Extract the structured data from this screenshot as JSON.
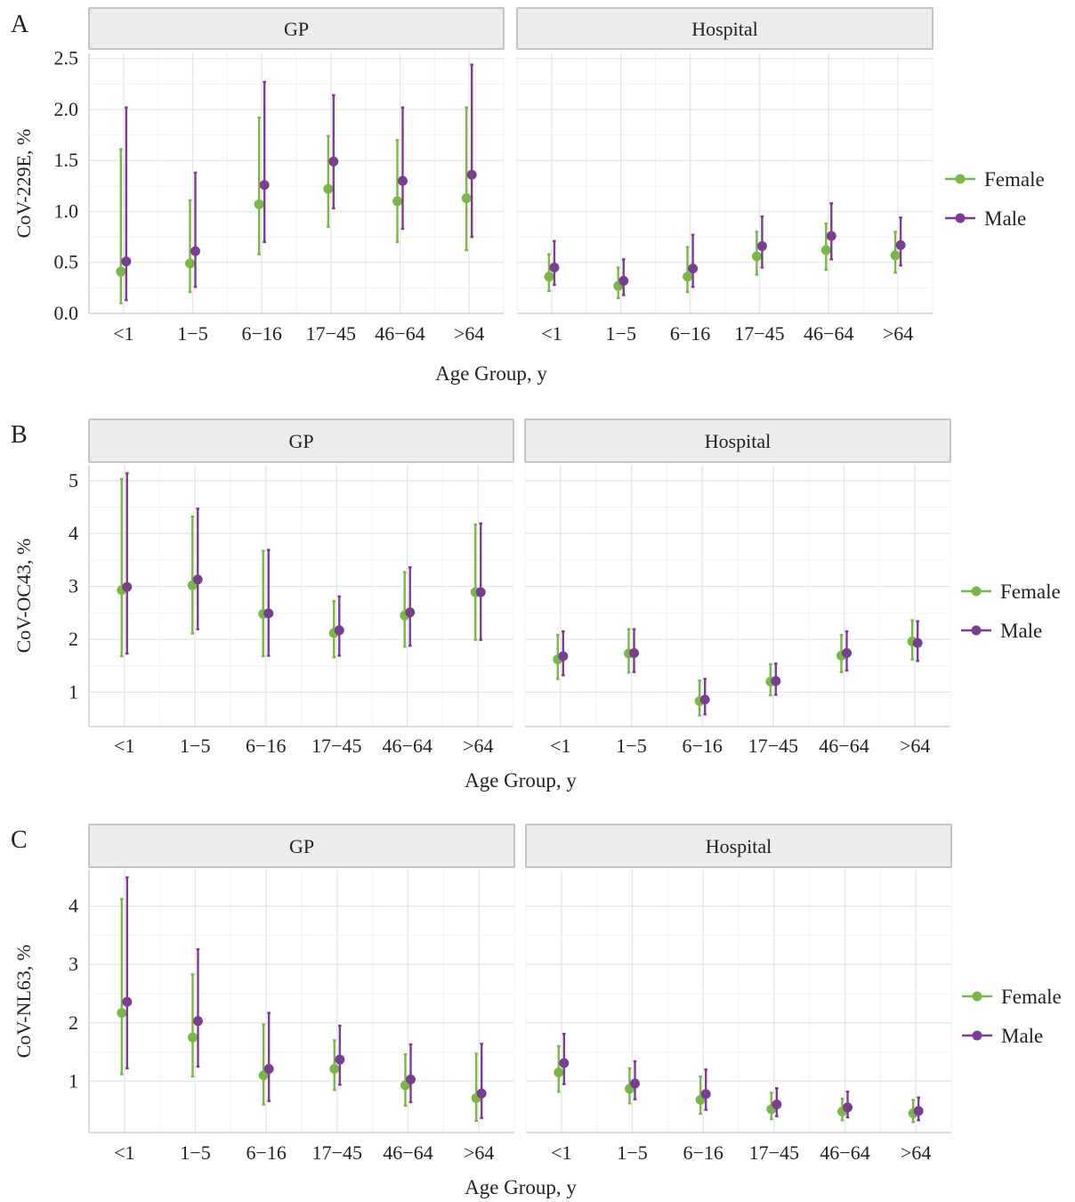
{
  "colors": {
    "female": "#7ab648",
    "male": "#7b3d91"
  },
  "legend": {
    "female_label": "Female",
    "male_label": "Male"
  },
  "chart_data": [
    {
      "type": "errorbar",
      "panel_letter": "A",
      "ylabel": "CoV-229E, %",
      "xlabel": "Age Group, y",
      "facets": [
        "GP",
        "Hospital"
      ],
      "categories": [
        "<1",
        "1−5",
        "6−16",
        "17−45",
        "46−64",
        ">64"
      ],
      "ylim": [
        0,
        2.55
      ],
      "yticks": [
        "0.0",
        "0.5",
        "1.0",
        "1.5",
        "2.0",
        "2.5"
      ],
      "series": [
        {
          "name": "Female",
          "facet": "GP",
          "values": [
            0.41,
            0.49,
            1.07,
            1.22,
            1.1,
            1.13
          ],
          "lower": [
            0.1,
            0.21,
            0.58,
            0.85,
            0.7,
            0.62
          ],
          "upper": [
            1.61,
            1.11,
            1.92,
            1.74,
            1.7,
            2.02
          ]
        },
        {
          "name": "Male",
          "facet": "GP",
          "values": [
            0.51,
            0.61,
            1.26,
            1.49,
            1.3,
            1.36
          ],
          "lower": [
            0.13,
            0.26,
            0.7,
            1.03,
            0.83,
            0.75
          ],
          "upper": [
            2.02,
            1.38,
            2.27,
            2.14,
            2.02,
            2.44
          ]
        },
        {
          "name": "Female",
          "facet": "Hospital",
          "values": [
            0.36,
            0.27,
            0.36,
            0.56,
            0.62,
            0.57
          ],
          "lower": [
            0.22,
            0.15,
            0.21,
            0.38,
            0.43,
            0.4
          ],
          "upper": [
            0.58,
            0.45,
            0.65,
            0.8,
            0.88,
            0.8
          ]
        },
        {
          "name": "Male",
          "facet": "Hospital",
          "values": [
            0.45,
            0.32,
            0.44,
            0.66,
            0.76,
            0.67
          ],
          "lower": [
            0.28,
            0.18,
            0.26,
            0.45,
            0.53,
            0.47
          ],
          "upper": [
            0.71,
            0.53,
            0.77,
            0.95,
            1.08,
            0.94
          ]
        }
      ]
    },
    {
      "type": "errorbar",
      "panel_letter": "B",
      "ylabel": "CoV-OC43, %",
      "xlabel": "Age Group, y",
      "facets": [
        "GP",
        "Hospital"
      ],
      "categories": [
        "<1",
        "1−5",
        "6−16",
        "17−45",
        "46−64",
        ">64"
      ],
      "ylim": [
        0.35,
        5.3
      ],
      "yticks": [
        "1",
        "2",
        "3",
        "4",
        "5"
      ],
      "series": [
        {
          "name": "Female",
          "facet": "GP",
          "values": [
            2.93,
            3.02,
            2.48,
            2.12,
            2.45,
            2.89
          ],
          "lower": [
            1.68,
            2.11,
            1.68,
            1.66,
            1.86,
            1.99
          ],
          "upper": [
            5.03,
            4.32,
            3.67,
            2.72,
            3.27,
            4.17
          ]
        },
        {
          "name": "Male",
          "facet": "GP",
          "values": [
            2.99,
            3.13,
            2.49,
            2.17,
            2.51,
            2.89
          ],
          "lower": [
            1.73,
            2.19,
            1.69,
            1.69,
            1.88,
            1.99
          ],
          "upper": [
            5.14,
            4.47,
            3.69,
            2.81,
            3.36,
            4.19
          ]
        },
        {
          "name": "Female",
          "facet": "Hospital",
          "values": [
            1.62,
            1.73,
            0.83,
            1.2,
            1.69,
            1.96
          ],
          "lower": [
            1.25,
            1.37,
            0.56,
            0.94,
            1.38,
            1.62
          ],
          "upper": [
            2.08,
            2.19,
            1.22,
            1.53,
            2.08,
            2.36
          ]
        },
        {
          "name": "Male",
          "facet": "Hospital",
          "values": [
            1.68,
            1.74,
            0.86,
            1.21,
            1.74,
            1.93
          ],
          "lower": [
            1.32,
            1.38,
            0.58,
            0.95,
            1.41,
            1.59
          ],
          "upper": [
            2.15,
            2.19,
            1.25,
            1.54,
            2.15,
            2.34
          ]
        }
      ]
    },
    {
      "type": "errorbar",
      "panel_letter": "C",
      "ylabel": "CoV-NL63, %",
      "xlabel": "Age Group, y",
      "facets": [
        "GP",
        "Hospital"
      ],
      "categories": [
        "<1",
        "1−5",
        "6−16",
        "17−45",
        "46−64",
        ">64"
      ],
      "ylim": [
        0.12,
        4.62
      ],
      "yticks": [
        "1",
        "2",
        "3",
        "4"
      ],
      "series": [
        {
          "name": "Female",
          "facet": "GP",
          "values": [
            2.17,
            1.75,
            1.1,
            1.21,
            0.93,
            0.71
          ],
          "lower": [
            1.12,
            1.08,
            0.6,
            0.85,
            0.58,
            0.32
          ],
          "upper": [
            4.12,
            2.83,
            1.97,
            1.7,
            1.46,
            1.47
          ]
        },
        {
          "name": "Male",
          "facet": "GP",
          "values": [
            2.36,
            2.03,
            1.21,
            1.37,
            1.03,
            0.79
          ],
          "lower": [
            1.22,
            1.25,
            0.66,
            0.94,
            0.64,
            0.37
          ],
          "upper": [
            4.49,
            3.26,
            2.17,
            1.95,
            1.63,
            1.64
          ]
        },
        {
          "name": "Female",
          "facet": "Hospital",
          "values": [
            1.15,
            0.87,
            0.68,
            0.52,
            0.48,
            0.45
          ],
          "lower": [
            0.82,
            0.62,
            0.44,
            0.35,
            0.33,
            0.3
          ],
          "upper": [
            1.6,
            1.22,
            1.08,
            0.8,
            0.7,
            0.68
          ]
        },
        {
          "name": "Male",
          "facet": "Hospital",
          "values": [
            1.31,
            0.96,
            0.78,
            0.6,
            0.55,
            0.49
          ],
          "lower": [
            0.95,
            0.69,
            0.51,
            0.4,
            0.38,
            0.33
          ],
          "upper": [
            1.81,
            1.34,
            1.2,
            0.88,
            0.82,
            0.72
          ]
        }
      ]
    }
  ]
}
